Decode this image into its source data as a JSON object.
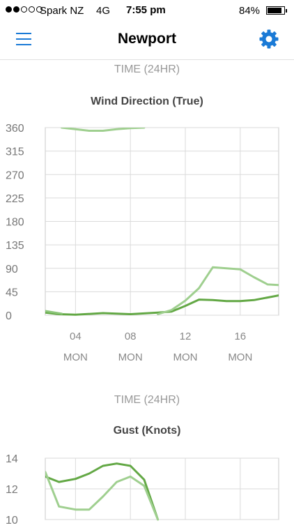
{
  "status": {
    "carrier": "Spark NZ",
    "network": "4G",
    "time": "7:55 pm",
    "battery": "84%",
    "signal_bars": 2,
    "signal_total": 5,
    "battery_level": 0.84
  },
  "nav": {
    "title": "Newport",
    "menu_icon": "hamburger-menu-icon",
    "settings_icon": "gear-icon",
    "accent": "#1a7ad6"
  },
  "sections": [
    {
      "time_label": "TIME (24HR)"
    },
    {
      "time_label": "TIME (24HR)"
    }
  ],
  "chart_data": [
    {
      "type": "line",
      "title": "Wind Direction (True)",
      "xlabel": "TIME (24HR)",
      "ylim": [
        0,
        360
      ],
      "yticks": [
        "360",
        "315",
        "270",
        "225",
        "180",
        "135",
        "90",
        "45",
        "0"
      ],
      "xticks": [
        {
          "hour": "04",
          "day": "MON",
          "x": 4
        },
        {
          "hour": "08",
          "day": "MON",
          "x": 8
        },
        {
          "hour": "12",
          "day": "MON",
          "x": 12
        },
        {
          "hour": "16",
          "day": "MON",
          "x": 16
        }
      ],
      "xlim": [
        1.8,
        18.8
      ],
      "series": [
        {
          "color": "#63a845",
          "points": [
            [
              1.8,
              5
            ],
            [
              2.8,
              2
            ],
            [
              4,
              1
            ],
            [
              6,
              4
            ],
            [
              8,
              2
            ],
            [
              10,
              5
            ],
            [
              11,
              7
            ],
            [
              12,
              18
            ],
            [
              13,
              30
            ],
            [
              14,
              29
            ],
            [
              15,
              27
            ],
            [
              16,
              27
            ],
            [
              17,
              29
            ],
            [
              18,
              34
            ],
            [
              18.8,
              38
            ]
          ]
        },
        {
          "color": "#8cc57a",
          "points": [
            [
              1.8,
              8
            ],
            [
              3.0,
              3
            ]
          ]
        },
        {
          "color": "#9fcf8f",
          "points": [
            [
              3.0,
              360
            ],
            [
              4,
              357
            ],
            [
              5,
              354
            ],
            [
              6,
              354
            ],
            [
              7,
              357
            ],
            [
              8,
              359
            ],
            [
              9,
              360
            ]
          ]
        },
        {
          "color": "#9fcf8f",
          "points": [
            [
              10,
              2
            ],
            [
              11,
              10
            ],
            [
              12,
              28
            ],
            [
              13,
              52
            ],
            [
              14,
              92
            ],
            [
              15,
              90
            ],
            [
              16,
              88
            ],
            [
              17,
              73
            ],
            [
              18,
              59
            ],
            [
              18.8,
              58
            ]
          ]
        }
      ]
    },
    {
      "type": "line",
      "title": "Gust (Knots)",
      "ylim": [
        10,
        14
      ],
      "yticks": [
        "14",
        "12",
        "10"
      ],
      "xlim": [
        1.8,
        18.8
      ],
      "series": [
        {
          "color": "#63a845",
          "points": [
            [
              1.8,
              12.8
            ],
            [
              2.8,
              12.45
            ],
            [
              4,
              12.65
            ],
            [
              5,
              13.0
            ],
            [
              6,
              13.5
            ],
            [
              7,
              13.65
            ],
            [
              8,
              13.5
            ],
            [
              9,
              12.6
            ],
            [
              10,
              10.0
            ]
          ]
        },
        {
          "color": "#9fcf8f",
          "points": [
            [
              1.8,
              13.1
            ],
            [
              2.8,
              10.85
            ],
            [
              4,
              10.65
            ],
            [
              5,
              10.65
            ],
            [
              6,
              11.5
            ],
            [
              7,
              12.45
            ],
            [
              8,
              12.8
            ],
            [
              9,
              12.2
            ],
            [
              10,
              10.0
            ]
          ]
        }
      ]
    }
  ]
}
